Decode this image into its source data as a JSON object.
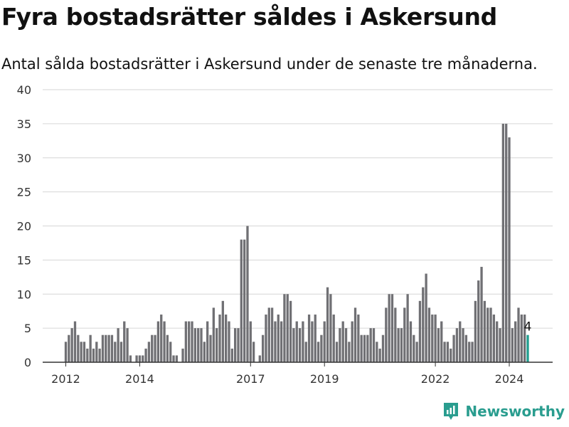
{
  "title": "Fyra bostadsrätter såldes i Askersund",
  "subtitle": "Antal sålda bostadsrätter i Askersund under de senaste tre månaderna.",
  "brand": {
    "name": "Newsworthy",
    "icon": "newsworthy-logo-icon"
  },
  "colors": {
    "bar": "#707074",
    "highlight": "#1f9e8f",
    "grid": "#d6d6d6",
    "axis": "#333333"
  },
  "chart_data": {
    "type": "bar",
    "x_start": "2012-01",
    "interval": "month",
    "values": [
      3,
      4,
      5,
      6,
      4,
      3,
      3,
      2,
      4,
      2,
      3,
      2,
      4,
      4,
      4,
      4,
      3,
      5,
      3,
      6,
      5,
      1,
      0,
      1,
      1,
      1,
      2,
      3,
      4,
      4,
      6,
      7,
      6,
      4,
      3,
      1,
      1,
      0,
      2,
      6,
      6,
      6,
      5,
      5,
      5,
      3,
      6,
      4,
      8,
      5,
      7,
      9,
      7,
      6,
      2,
      5,
      5,
      18,
      18,
      20,
      6,
      3,
      0,
      1,
      4,
      7,
      8,
      8,
      6,
      7,
      6,
      10,
      10,
      9,
      5,
      6,
      5,
      6,
      3,
      7,
      6,
      7,
      3,
      4,
      6,
      11,
      10,
      7,
      3,
      5,
      6,
      5,
      3,
      6,
      8,
      7,
      4,
      4,
      4,
      5,
      5,
      3,
      2,
      4,
      8,
      10,
      10,
      8,
      5,
      5,
      8,
      10,
      6,
      4,
      3,
      9,
      11,
      13,
      8,
      7,
      7,
      5,
      6,
      3,
      3,
      2,
      4,
      5,
      6,
      5,
      4,
      3,
      3,
      9,
      12,
      14,
      9,
      8,
      8,
      7,
      6,
      5,
      35,
      35,
      33,
      5,
      6,
      8,
      7,
      7,
      4
    ],
    "highlight_last": true,
    "annotation": "4",
    "x_ticks": [
      "2012",
      "2014",
      "2017",
      "2019",
      "2022",
      "2024"
    ],
    "y_ticks": [
      "0",
      "5",
      "10",
      "15",
      "20",
      "25",
      "30",
      "35",
      "40"
    ],
    "ylim": [
      0,
      40
    ],
    "grid": true,
    "xlabel": "",
    "ylabel": ""
  }
}
